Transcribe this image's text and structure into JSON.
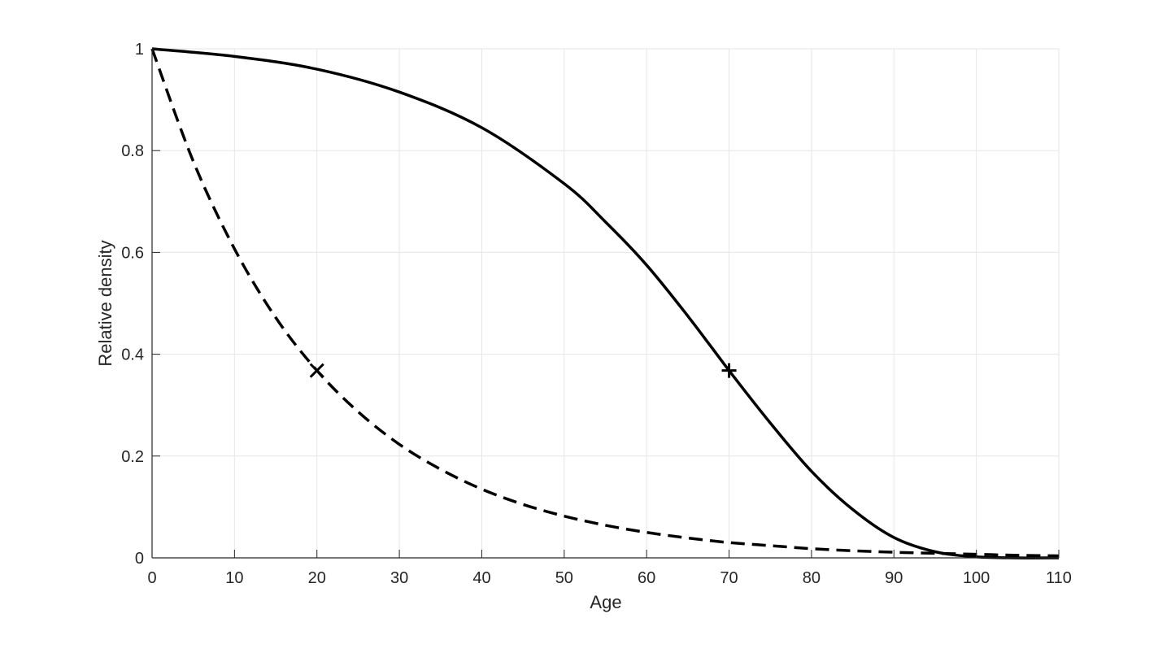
{
  "chart_data": {
    "type": "line",
    "title": "",
    "xlabel": "Age",
    "ylabel": "Relative density",
    "xlim": [
      0,
      110
    ],
    "ylim": [
      0,
      1
    ],
    "x_ticks": [
      0,
      10,
      20,
      30,
      40,
      50,
      60,
      70,
      80,
      90,
      100,
      110
    ],
    "y_ticks": [
      0,
      0.2,
      0.4,
      0.6,
      0.8,
      1
    ],
    "x_tick_labels": [
      "0",
      "10",
      "20",
      "30",
      "40",
      "50",
      "60",
      "70",
      "80",
      "90",
      "100",
      "110"
    ],
    "y_tick_labels": [
      "0",
      "0.2",
      "0.4",
      "0.6",
      "0.8",
      "1"
    ],
    "grid": true,
    "legend": "none",
    "series": [
      {
        "style": "solid",
        "color": "#000000",
        "x": [
          0,
          10,
          20,
          30,
          40,
          50,
          55,
          60,
          65,
          70,
          75,
          80,
          85,
          90,
          95,
          100,
          105,
          110
        ],
        "values": [
          1.0,
          0.985,
          0.96,
          0.915,
          0.845,
          0.735,
          0.66,
          0.575,
          0.475,
          0.368,
          0.265,
          0.17,
          0.095,
          0.04,
          0.012,
          0.002,
          0.0,
          0.0
        ]
      },
      {
        "style": "dashed",
        "color": "#000000",
        "x": [
          0,
          5,
          10,
          15,
          20,
          25,
          30,
          35,
          40,
          45,
          50,
          55,
          60,
          65,
          70,
          75,
          80,
          85,
          90,
          95,
          100,
          105,
          110
        ],
        "values": [
          1.0,
          0.779,
          0.607,
          0.472,
          0.368,
          0.287,
          0.223,
          0.174,
          0.135,
          0.105,
          0.082,
          0.064,
          0.05,
          0.039,
          0.03,
          0.024,
          0.018,
          0.014,
          0.011,
          0.009,
          0.007,
          0.005,
          0.004
        ]
      }
    ],
    "markers": [
      {
        "symbol": "plus",
        "x": 70,
        "y": 0.368,
        "color": "#000000"
      },
      {
        "symbol": "cross",
        "x": 20,
        "y": 0.368,
        "color": "#000000"
      }
    ],
    "colors": {
      "grid": "#e6e6e6",
      "axis": "#262626",
      "line": "#000000"
    }
  }
}
